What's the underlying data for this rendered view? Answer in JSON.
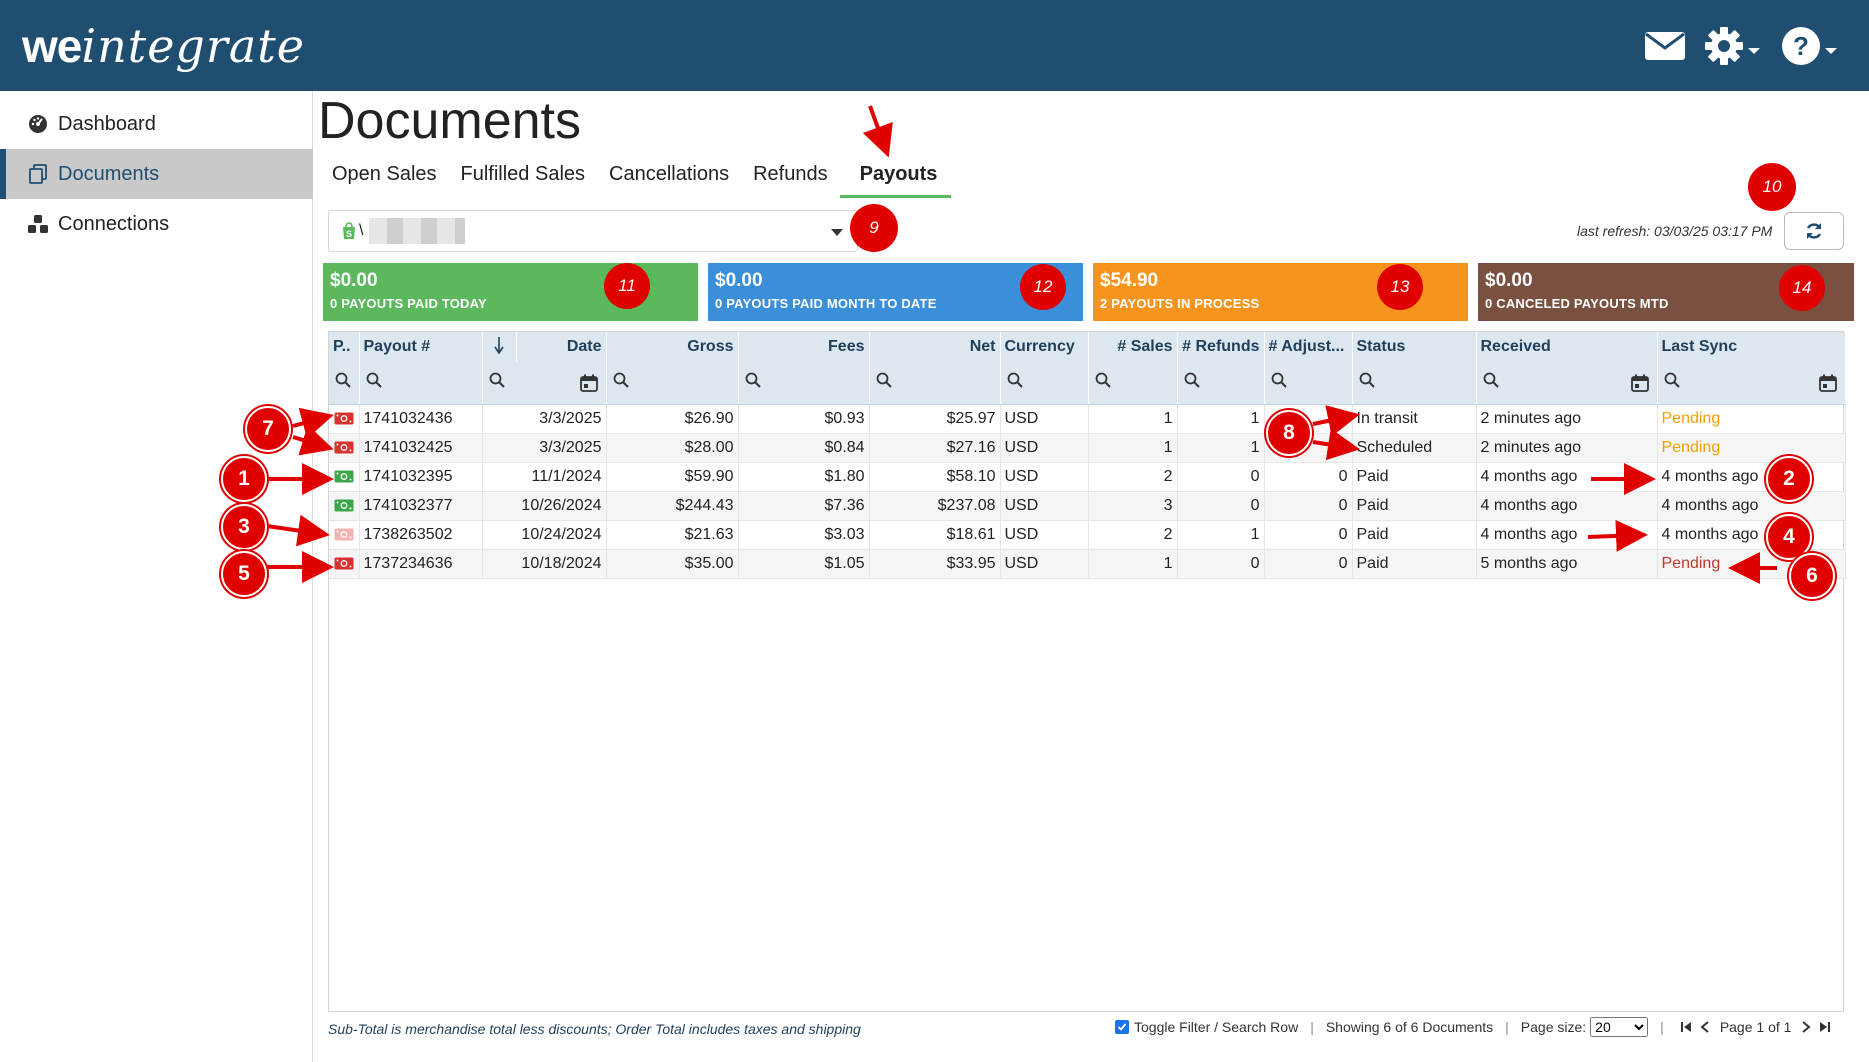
{
  "header": {
    "logo_we": "we",
    "logo_integrate": "integrate",
    "icons": [
      "mail-icon",
      "gear-icon",
      "help-icon"
    ]
  },
  "sidebar": {
    "items": [
      {
        "label": "Dashboard",
        "icon": "dashboard-icon"
      },
      {
        "label": "Documents",
        "icon": "documents-icon",
        "active": true
      },
      {
        "label": "Connections",
        "icon": "connections-icon"
      }
    ]
  },
  "main": {
    "title": "Documents",
    "tabs": [
      "Open Sales",
      "Fulfilled Sales",
      "Cancellations",
      "Refunds",
      "Payouts"
    ],
    "active_tab": "Payouts",
    "account_select": {
      "value": "\\",
      "icon": "shopify-icon"
    },
    "last_refresh": "last refresh: 03/03/25 03:17 PM"
  },
  "kpis": [
    {
      "amount": "$0.00",
      "label": "0 PAYOUTS PAID TODAY",
      "color": "#5cb85c"
    },
    {
      "amount": "$0.00",
      "label": "0 PAYOUTS PAID MONTH TO DATE",
      "color": "#3b8ed8"
    },
    {
      "amount": "$54.90",
      "label": "2 PAYOUTS IN PROCESS",
      "color": "#f7941d"
    },
    {
      "amount": "$0.00",
      "label": "0 CANCELED PAYOUTS MTD",
      "color": "#7a5141"
    }
  ],
  "table": {
    "columns": [
      "P..",
      "Payout #",
      "",
      "Date",
      "Gross",
      "Fees",
      "Net",
      "Currency",
      "# Sales",
      "# Refunds",
      "# Adjust...",
      "Status",
      "Received",
      "Last Sync"
    ],
    "rows": [
      {
        "flag": "red",
        "payout": "1741032436",
        "date": "3/3/2025",
        "gross": "$26.90",
        "fees": "$0.93",
        "net": "$25.97",
        "currency": "USD",
        "sales": "1",
        "refunds": "1",
        "adjust": "0",
        "status": "In transit",
        "received": "2 minutes ago",
        "last_sync": "Pending",
        "sync_style": "pending"
      },
      {
        "flag": "red",
        "payout": "1741032425",
        "date": "3/3/2025",
        "gross": "$28.00",
        "fees": "$0.84",
        "net": "$27.16",
        "currency": "USD",
        "sales": "1",
        "refunds": "1",
        "adjust": "0",
        "status": "Scheduled",
        "received": "2 minutes ago",
        "last_sync": "Pending",
        "sync_style": "pending"
      },
      {
        "flag": "green",
        "payout": "1741032395",
        "date": "11/1/2024",
        "gross": "$59.90",
        "fees": "$1.80",
        "net": "$58.10",
        "currency": "USD",
        "sales": "2",
        "refunds": "0",
        "adjust": "0",
        "status": "Paid",
        "received": "4 months ago",
        "last_sync": "4 months ago",
        "sync_style": "normal"
      },
      {
        "flag": "green",
        "payout": "1741032377",
        "date": "10/26/2024",
        "gross": "$244.43",
        "fees": "$7.36",
        "net": "$237.08",
        "currency": "USD",
        "sales": "3",
        "refunds": "0",
        "adjust": "0",
        "status": "Paid",
        "received": "4 months ago",
        "last_sync": "4 months ago",
        "sync_style": "normal"
      },
      {
        "flag": "faded",
        "payout": "1738263502",
        "date": "10/24/2024",
        "gross": "$21.63",
        "fees": "$3.03",
        "net": "$18.61",
        "currency": "USD",
        "sales": "2",
        "refunds": "1",
        "adjust": "0",
        "status": "Paid",
        "received": "4 months ago",
        "last_sync": "4 months ago",
        "sync_style": "normal"
      },
      {
        "flag": "red",
        "payout": "1737234636",
        "date": "10/18/2024",
        "gross": "$35.00",
        "fees": "$1.05",
        "net": "$33.95",
        "currency": "USD",
        "sales": "1",
        "refunds": "0",
        "adjust": "0",
        "status": "Paid",
        "received": "5 months ago",
        "last_sync": "Pending",
        "sync_style": "pending-red"
      }
    ]
  },
  "footer": {
    "note": "Sub-Total is merchandise total less discounts; Order Total includes taxes and shipping",
    "toggle_filter": "Toggle Filter / Search Row",
    "showing": "Showing 6 of 6 Documents",
    "page_size_label": "Page size:",
    "page_size": "20",
    "page_label": "Page 1 of 1"
  },
  "annotations": {
    "top_badges": [
      "9",
      "10",
      "11",
      "12",
      "13",
      "14"
    ],
    "bold_badges": [
      "1",
      "2",
      "3",
      "4",
      "5",
      "6",
      "7",
      "8"
    ]
  }
}
